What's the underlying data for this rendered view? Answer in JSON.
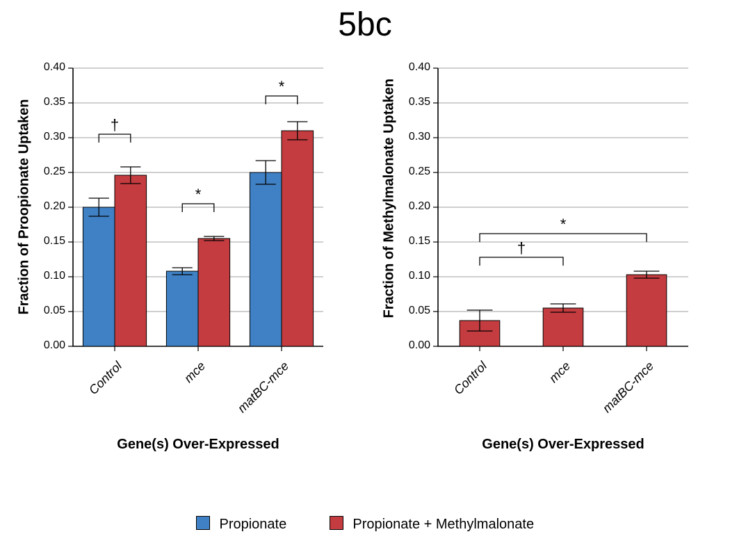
{
  "title": "5bc",
  "legend": {
    "items": [
      {
        "label": "Propionate",
        "color": "#3f81c4"
      },
      {
        "label": "Propionate + Methylmalonate",
        "color": "#c43c3f"
      }
    ]
  },
  "panels": [
    {
      "id": "left",
      "type": "bar",
      "ylabel": "Fraction of Proopionate Uptaken",
      "xlabel": "Gene(s) Over-Expressed",
      "categories": [
        "Control",
        "mce",
        "matBC-mce"
      ],
      "series": [
        {
          "name": "Propionate",
          "color": "#3f81c4",
          "values": [
            0.2,
            0.108,
            0.25
          ],
          "errors": [
            0.013,
            0.005,
            0.017
          ]
        },
        {
          "name": "Propionate+MM",
          "color": "#c43c3f",
          "values": [
            0.246,
            0.155,
            0.31
          ],
          "errors": [
            0.012,
            0.003,
            0.013
          ]
        }
      ],
      "ylim": [
        0.0,
        0.4
      ],
      "ytick_step": 0.05,
      "bar_border": "#000000",
      "error_color": "#000000",
      "grid_color": "#7f7f7f",
      "axis_color": "#000000",
      "bar_width": 0.38,
      "significance": [
        {
          "symbol": "†",
          "from_bar": [
            0,
            0
          ],
          "to_bar": [
            0,
            1
          ],
          "y": 0.305
        },
        {
          "symbol": "*",
          "from_bar": [
            1,
            0
          ],
          "to_bar": [
            1,
            1
          ],
          "y": 0.205
        },
        {
          "symbol": "*",
          "from_bar": [
            2,
            0
          ],
          "to_bar": [
            2,
            1
          ],
          "y": 0.36
        }
      ]
    },
    {
      "id": "right",
      "type": "bar",
      "ylabel": "Fraction of Methylmalonate Uptaken",
      "xlabel": "Gene(s) Over-Expressed",
      "categories": [
        "Control",
        "mce",
        "matBC-mce"
      ],
      "series": [
        {
          "name": "Propionate+MM",
          "color": "#c43c3f",
          "values": [
            0.037,
            0.055,
            0.103
          ],
          "errors": [
            0.015,
            0.006,
            0.005
          ]
        }
      ],
      "ylim": [
        0.0,
        0.4
      ],
      "ytick_step": 0.05,
      "bar_border": "#000000",
      "error_color": "#000000",
      "grid_color": "#7f7f7f",
      "axis_color": "#000000",
      "bar_width": 0.48,
      "significance": [
        {
          "symbol": "†",
          "from_bar": [
            0,
            0
          ],
          "to_bar": [
            1,
            0
          ],
          "y": 0.128
        },
        {
          "symbol": "*",
          "from_bar": [
            0,
            0
          ],
          "to_bar": [
            2,
            0
          ],
          "y": 0.162
        }
      ]
    }
  ],
  "layout": {
    "label_fontsize": 20,
    "tick_fontsize": 16,
    "xtick_fontsize": 18
  }
}
